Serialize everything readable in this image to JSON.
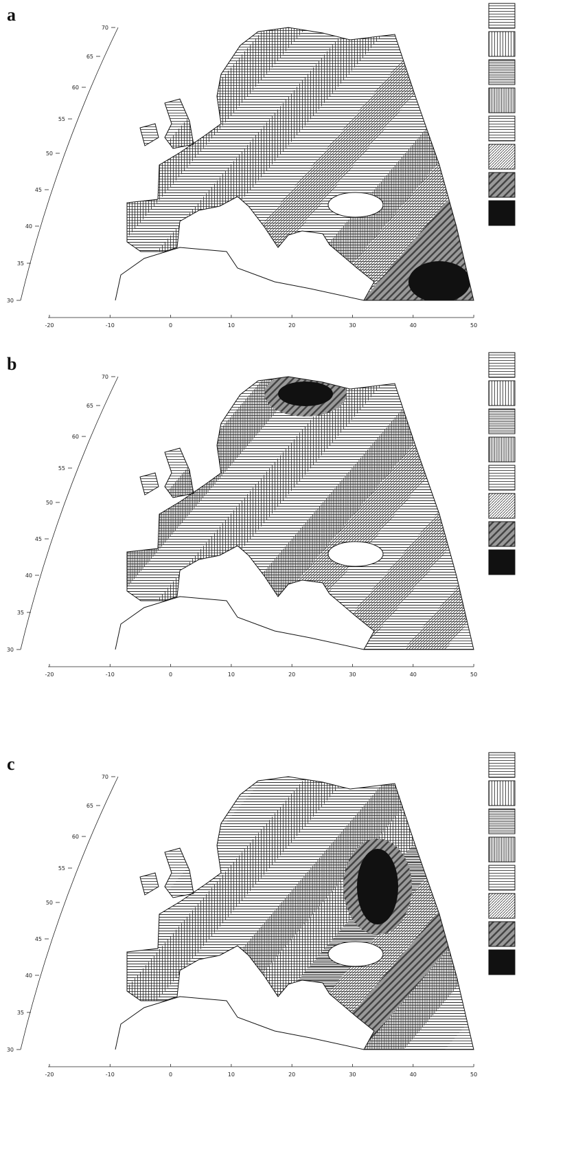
{
  "panels": [
    {
      "label": "a",
      "lat_labels": [
        70,
        65,
        60,
        55,
        50,
        45,
        40,
        35,
        30
      ],
      "lon_labels": [
        -20,
        -10,
        0,
        10,
        20,
        30,
        40,
        50
      ]
    },
    {
      "label": "b",
      "lat_labels": [
        70,
        65,
        60,
        55,
        50,
        45,
        40,
        35,
        30
      ],
      "lon_labels": [
        -20,
        -10,
        0,
        10,
        20,
        30,
        40,
        50
      ]
    },
    {
      "label": "c",
      "lat_labels": [
        70,
        65,
        60,
        55,
        50,
        45,
        40,
        35,
        30
      ],
      "lon_labels": [
        -20,
        -10,
        0,
        10,
        20,
        30,
        40,
        50
      ]
    }
  ]
}
